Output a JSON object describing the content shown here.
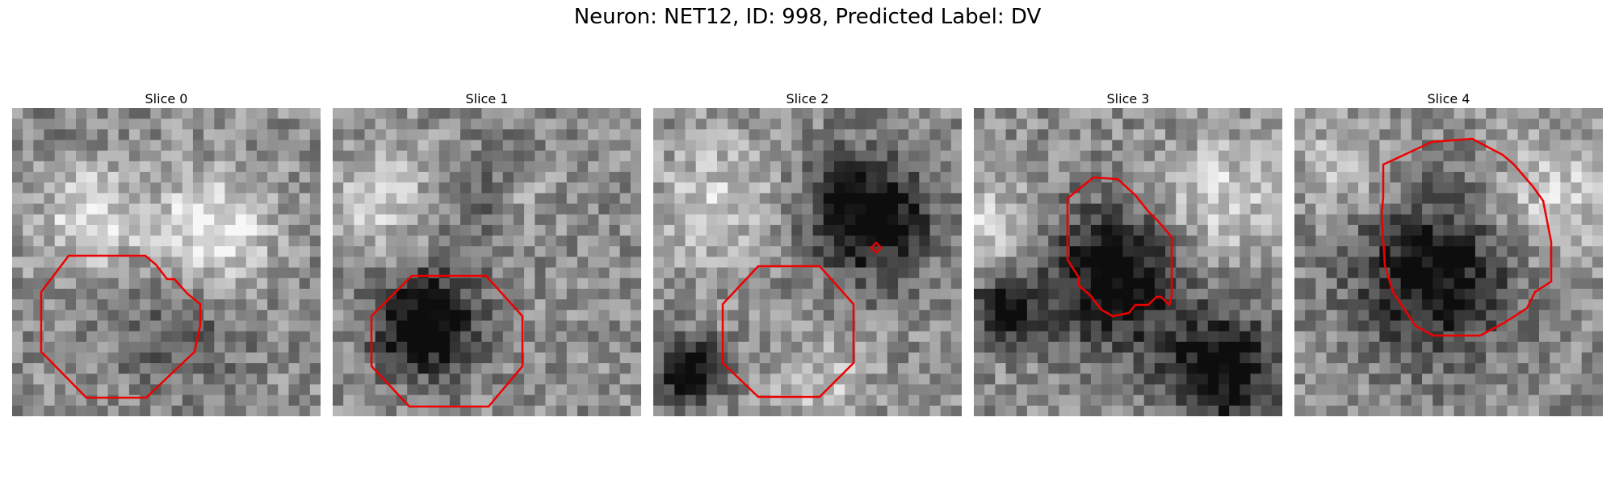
{
  "figure": {
    "title": "Neuron: NET12, ID: 998, Predicted Label: DV",
    "outline_color": "#ee0000"
  },
  "panels": [
    {
      "title": "Slice 0",
      "seed": 11,
      "dark": [
        [
          0.55,
          0.72,
          0.22,
          0.18
        ],
        [
          0.15,
          0.05,
          0.2,
          0.05
        ]
      ],
      "bright": [
        [
          0.25,
          0.35,
          0.18,
          0.45
        ],
        [
          0.65,
          0.4,
          0.18,
          0.6
        ]
      ]
    },
    {
      "title": "Slice 1",
      "seed": 23,
      "dark": [
        [
          0.3,
          0.7,
          0.16,
          0.7
        ],
        [
          0.55,
          0.3,
          0.15,
          0.35
        ]
      ],
      "bright": [
        [
          0.15,
          0.3,
          0.16,
          0.4
        ],
        [
          0.6,
          0.3,
          0.12,
          0.5
        ]
      ]
    },
    {
      "title": "Slice 2",
      "seed": 37,
      "dark": [
        [
          0.7,
          0.35,
          0.2,
          0.6
        ],
        [
          0.12,
          0.85,
          0.1,
          0.6
        ]
      ],
      "bright": [
        [
          0.2,
          0.3,
          0.2,
          0.35
        ],
        [
          0.55,
          0.9,
          0.15,
          0.3
        ]
      ]
    },
    {
      "title": "Slice 3",
      "seed": 41,
      "dark": [
        [
          0.45,
          0.55,
          0.22,
          0.6
        ],
        [
          0.1,
          0.65,
          0.1,
          0.6
        ],
        [
          0.8,
          0.85,
          0.18,
          0.6
        ]
      ],
      "bright": [
        [
          0.05,
          0.4,
          0.15,
          0.4
        ],
        [
          0.8,
          0.3,
          0.2,
          0.4
        ]
      ]
    },
    {
      "title": "Slice 4",
      "seed": 53,
      "dark": [
        [
          0.45,
          0.55,
          0.25,
          0.55
        ]
      ],
      "bright": [
        [
          0.85,
          0.3,
          0.2,
          0.4
        ],
        [
          0.15,
          0.2,
          0.15,
          0.3
        ]
      ]
    }
  ]
}
